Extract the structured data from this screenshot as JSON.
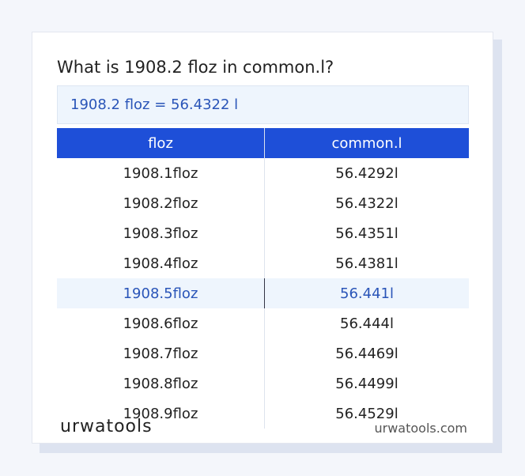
{
  "title": "What is 1908.2 floz in common.l?",
  "result": "1908.2 floz = 56.4322 l",
  "table": {
    "headers": [
      "floz",
      "common.l"
    ],
    "rows": [
      [
        "1908.1floz",
        "56.4292l"
      ],
      [
        "1908.2floz",
        "56.4322l"
      ],
      [
        "1908.3floz",
        "56.4351l"
      ],
      [
        "1908.4floz",
        "56.4381l"
      ],
      [
        "1908.5floz",
        "56.441l"
      ],
      [
        "1908.6floz",
        "56.444l"
      ],
      [
        "1908.7floz",
        "56.4469l"
      ],
      [
        "1908.8floz",
        "56.4499l"
      ],
      [
        "1908.9floz",
        "56.4529l"
      ]
    ]
  },
  "footer": {
    "brand": "urwatools",
    "site": "urwatools.com"
  }
}
